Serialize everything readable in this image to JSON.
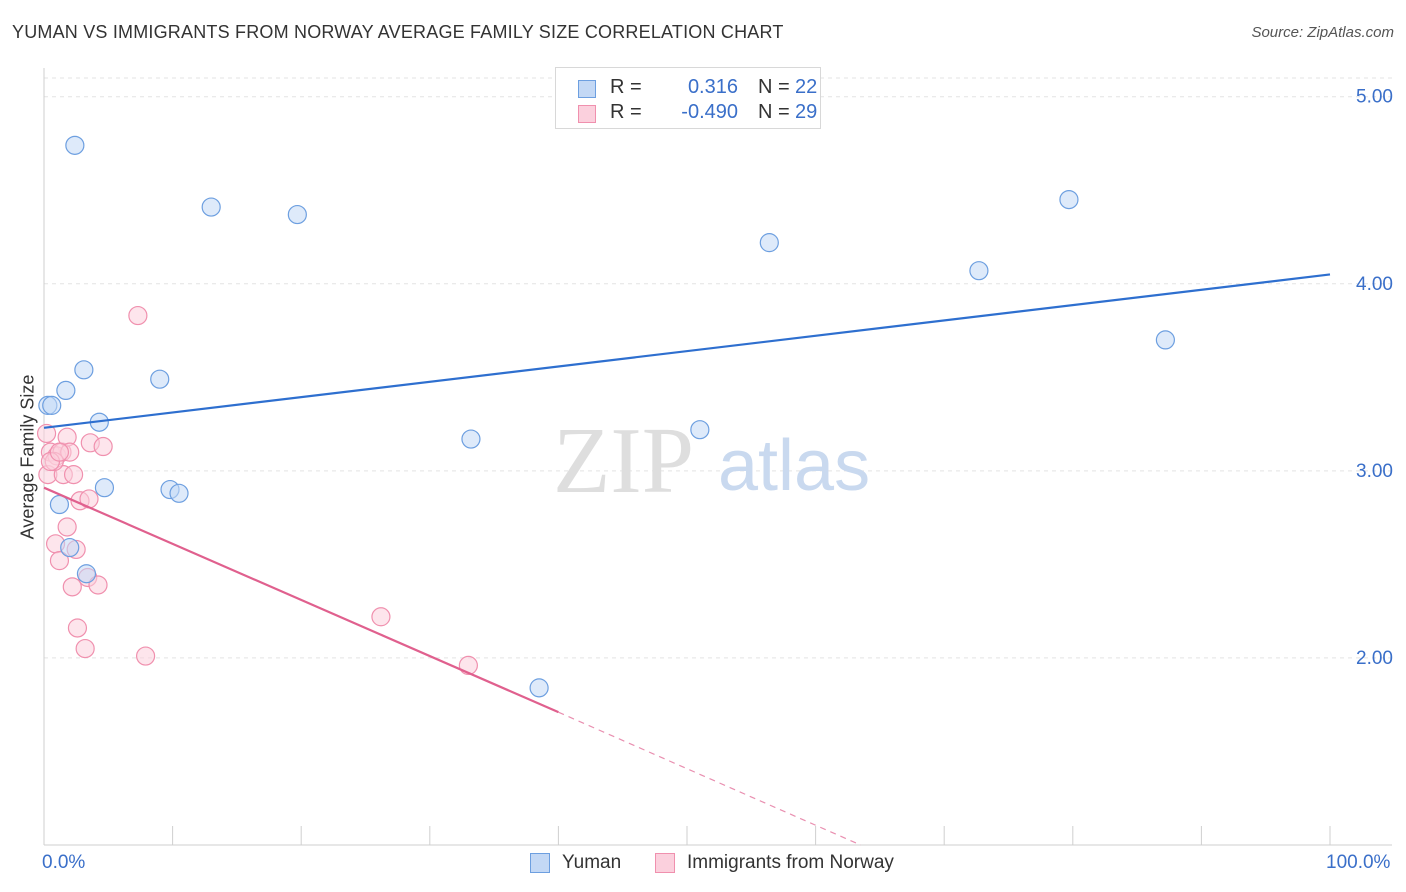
{
  "header": {
    "title": "YUMAN VS IMMIGRANTS FROM NORWAY AVERAGE FAMILY SIZE CORRELATION CHART",
    "source": "Source: ZipAtlas.com"
  },
  "watermark": {
    "zip": "ZIP",
    "atlas": "atlas"
  },
  "legend": {
    "r_label": "R =",
    "n_label": "N =",
    "rows": [
      {
        "r": "0.316",
        "n": "22"
      },
      {
        "r": "-0.490",
        "n": "29"
      }
    ]
  },
  "chart_data": {
    "type": "scatter",
    "xlabel": "",
    "ylabel": "Average Family Size",
    "xlim": [
      0,
      100
    ],
    "ylim": [
      1.0,
      5.1
    ],
    "x_tick_labels": [
      "0.0%",
      "100.0%"
    ],
    "y_ticks": [
      2.0,
      3.0,
      4.0,
      5.0
    ],
    "y_tick_labels": [
      "2.00",
      "3.00",
      "4.00",
      "5.00"
    ],
    "grid": true,
    "legend_position": "bottom-center",
    "colors": {
      "yuman": "#6d9fe0",
      "norway": "#f090ae",
      "yuman_line": "#2e6fcf",
      "norway_line": "#e0608e"
    },
    "series": [
      {
        "name": "Yuman",
        "points": [
          [
            2.4,
            4.74
          ],
          [
            0.3,
            3.35
          ],
          [
            0.6,
            3.35
          ],
          [
            1.7,
            3.43
          ],
          [
            3.1,
            3.54
          ],
          [
            4.3,
            3.26
          ],
          [
            9.0,
            3.49
          ],
          [
            13.0,
            4.41
          ],
          [
            19.7,
            4.37
          ],
          [
            4.7,
            2.91
          ],
          [
            1.2,
            2.82
          ],
          [
            9.8,
            2.9
          ],
          [
            10.5,
            2.88
          ],
          [
            2.0,
            2.59
          ],
          [
            3.3,
            2.45
          ],
          [
            33.2,
            3.17
          ],
          [
            38.5,
            1.84
          ],
          [
            51.0,
            3.22
          ],
          [
            56.4,
            4.22
          ],
          [
            72.7,
            4.07
          ],
          [
            79.7,
            4.45
          ],
          [
            87.2,
            3.7
          ]
        ],
        "trend": {
          "x": [
            0,
            100
          ],
          "y": [
            3.23,
            4.05
          ],
          "style": "solid"
        }
      },
      {
        "name": "Immigrants from Norway",
        "points": [
          [
            0.2,
            3.2
          ],
          [
            0.5,
            3.1
          ],
          [
            1.0,
            3.08
          ],
          [
            1.4,
            3.1
          ],
          [
            1.8,
            3.18
          ],
          [
            2.0,
            3.1
          ],
          [
            0.3,
            2.98
          ],
          [
            1.5,
            2.98
          ],
          [
            2.3,
            2.98
          ],
          [
            0.8,
            3.05
          ],
          [
            0.5,
            3.05
          ],
          [
            1.2,
            3.1
          ],
          [
            3.6,
            3.15
          ],
          [
            4.6,
            3.13
          ],
          [
            7.3,
            3.83
          ],
          [
            2.8,
            2.84
          ],
          [
            3.5,
            2.85
          ],
          [
            1.8,
            2.7
          ],
          [
            0.9,
            2.61
          ],
          [
            2.5,
            2.58
          ],
          [
            1.2,
            2.52
          ],
          [
            2.2,
            2.38
          ],
          [
            3.4,
            2.43
          ],
          [
            4.2,
            2.39
          ],
          [
            2.6,
            2.16
          ],
          [
            3.2,
            2.05
          ],
          [
            7.9,
            2.01
          ],
          [
            26.2,
            2.22
          ],
          [
            33.0,
            1.96
          ]
        ],
        "trend": {
          "x": [
            0,
            40
          ],
          "y": [
            2.91,
            1.71
          ],
          "style": "solid",
          "dashed_extension": {
            "x": [
              40,
              63.5
            ],
            "y": [
              1.71,
              1.0
            ]
          }
        }
      }
    ]
  }
}
